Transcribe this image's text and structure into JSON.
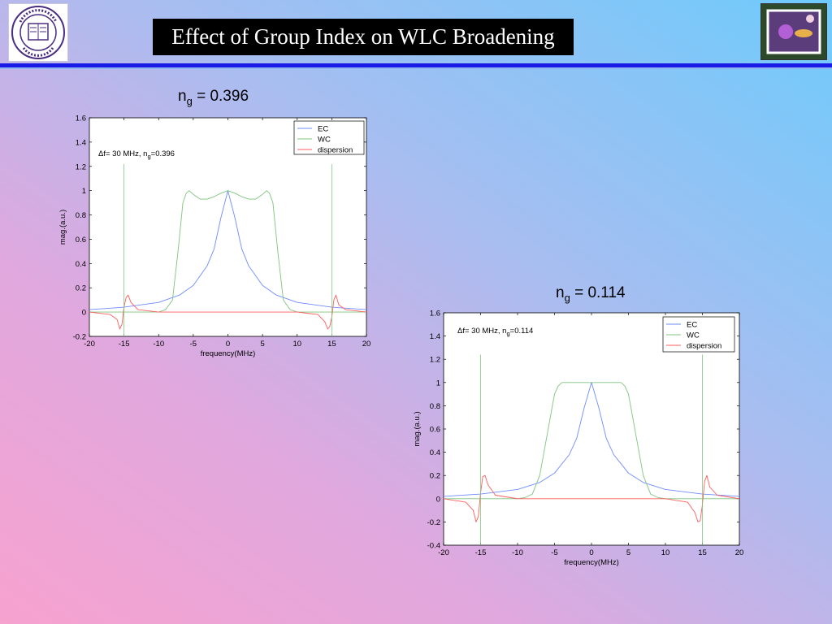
{
  "slide": {
    "title": "Effect of Group Index on WLC Broadening"
  },
  "colors": {
    "title_bg": "#000000",
    "rule": "#1a1ae6",
    "EC": "#6f8bff",
    "WC": "#7fc47f",
    "dispersion": "#ff5c5c"
  },
  "chart_data": [
    {
      "type": "line",
      "heading": {
        "base": "n",
        "sub": "g",
        "rest": " = 0.396"
      },
      "annotation": {
        "prefix": "Δf= 30 MHz, n",
        "sub": "g",
        "suffix": "=0.396"
      },
      "xlabel": "frequency(MHz)",
      "ylabel": "mag.(a.u.)",
      "xlim": [
        -20,
        20
      ],
      "ylim": [
        -0.2,
        1.6
      ],
      "xticks": [
        -20,
        -15,
        -10,
        -5,
        0,
        5,
        10,
        15,
        20
      ],
      "yticks": [
        -0.2,
        0,
        0.2,
        0.4,
        0.6,
        0.8,
        1,
        1.2,
        1.4,
        1.6
      ],
      "legend_position": "top-right",
      "series": [
        {
          "name": "EC",
          "x": [
            -20,
            -15,
            -10,
            -7,
            -5,
            -3,
            -2,
            -1,
            0,
            1,
            2,
            3,
            5,
            7,
            10,
            15,
            20
          ],
          "y": [
            0.02,
            0.04,
            0.08,
            0.14,
            0.22,
            0.38,
            0.52,
            0.78,
            1.0,
            0.78,
            0.52,
            0.38,
            0.22,
            0.14,
            0.08,
            0.04,
            0.02
          ]
        },
        {
          "name": "WC",
          "x": [
            -20,
            -10,
            -9,
            -8,
            -7.2,
            -6.5,
            -6,
            -5.6,
            -5,
            -4,
            -3,
            -2,
            -1,
            0,
            1,
            2,
            3,
            4,
            5,
            5.6,
            6,
            6.5,
            7.2,
            8,
            9,
            10,
            20
          ],
          "y": [
            0,
            0,
            0.02,
            0.1,
            0.5,
            0.9,
            0.98,
            1.0,
            0.97,
            0.93,
            0.93,
            0.95,
            0.98,
            1.0,
            0.98,
            0.95,
            0.93,
            0.93,
            0.97,
            1.0,
            0.98,
            0.9,
            0.5,
            0.1,
            0.02,
            0,
            0
          ]
        },
        {
          "name": "dispersion",
          "x": [
            -20,
            -17,
            -16,
            -15.6,
            -15.3,
            -15.0,
            -14.7,
            -14.4,
            -14,
            -13,
            -10,
            10,
            13,
            14,
            14.4,
            14.7,
            15.0,
            15.3,
            15.6,
            16,
            17,
            20
          ],
          "y": [
            0.0,
            -0.02,
            -0.06,
            -0.14,
            -0.1,
            0.04,
            0.12,
            0.14,
            0.08,
            0.02,
            0,
            0,
            -0.02,
            -0.08,
            -0.14,
            -0.12,
            -0.04,
            0.1,
            0.14,
            0.06,
            0.02,
            0.0
          ]
        },
        {
          "name": "markers",
          "label": "",
          "x": [
            -15,
            15
          ],
          "y": [
            1.22,
            1.22
          ]
        }
      ]
    },
    {
      "type": "line",
      "heading": {
        "base": "n",
        "sub": "g",
        "rest": " = 0.114"
      },
      "annotation": {
        "prefix": "Δf= 30 MHz, n",
        "sub": "g",
        "suffix": "=0.114"
      },
      "xlabel": "frequency(MHz)",
      "ylabel": "mag.(a.u.)",
      "xlim": [
        -20,
        20
      ],
      "ylim": [
        -0.4,
        1.6
      ],
      "xticks": [
        -20,
        -15,
        -10,
        -5,
        0,
        5,
        10,
        15,
        20
      ],
      "yticks": [
        -0.4,
        -0.2,
        0,
        0.2,
        0.4,
        0.6,
        0.8,
        1,
        1.2,
        1.4,
        1.6
      ],
      "legend_position": "top-right",
      "series": [
        {
          "name": "EC",
          "x": [
            -20,
            -15,
            -10,
            -7,
            -5,
            -3,
            -2,
            -1,
            0,
            1,
            2,
            3,
            5,
            7,
            10,
            15,
            20
          ],
          "y": [
            0.02,
            0.04,
            0.08,
            0.14,
            0.22,
            0.38,
            0.52,
            0.78,
            1.0,
            0.78,
            0.52,
            0.38,
            0.22,
            0.14,
            0.08,
            0.04,
            0.02
          ]
        },
        {
          "name": "WC",
          "x": [
            -20,
            -10,
            -9,
            -8,
            -7,
            -6,
            -5,
            -4.5,
            -4,
            -3,
            -2,
            -1,
            0,
            1,
            2,
            3,
            4,
            4.5,
            5,
            6,
            7,
            8,
            9,
            10,
            20
          ],
          "y": [
            0,
            0,
            0.01,
            0.04,
            0.2,
            0.55,
            0.9,
            0.97,
            1.0,
            1.0,
            1.0,
            1.0,
            1.0,
            1.0,
            1.0,
            1.0,
            1.0,
            0.97,
            0.9,
            0.55,
            0.2,
            0.04,
            0.01,
            0,
            0
          ]
        },
        {
          "name": "dispersion",
          "x": [
            -20,
            -17,
            -16,
            -15.6,
            -15.3,
            -15.0,
            -14.7,
            -14.4,
            -14,
            -13,
            -10,
            10,
            13,
            14,
            14.4,
            14.7,
            15.0,
            15.3,
            15.6,
            16,
            17,
            20
          ],
          "y": [
            0.0,
            -0.03,
            -0.1,
            -0.2,
            -0.15,
            0.05,
            0.19,
            0.2,
            0.12,
            0.03,
            0,
            0,
            -0.03,
            -0.12,
            -0.2,
            -0.19,
            -0.05,
            0.15,
            0.2,
            0.1,
            0.03,
            0.0
          ]
        },
        {
          "name": "markers",
          "label": "",
          "x": [
            -15,
            15
          ],
          "y": [
            1.24,
            1.24
          ]
        }
      ]
    }
  ]
}
